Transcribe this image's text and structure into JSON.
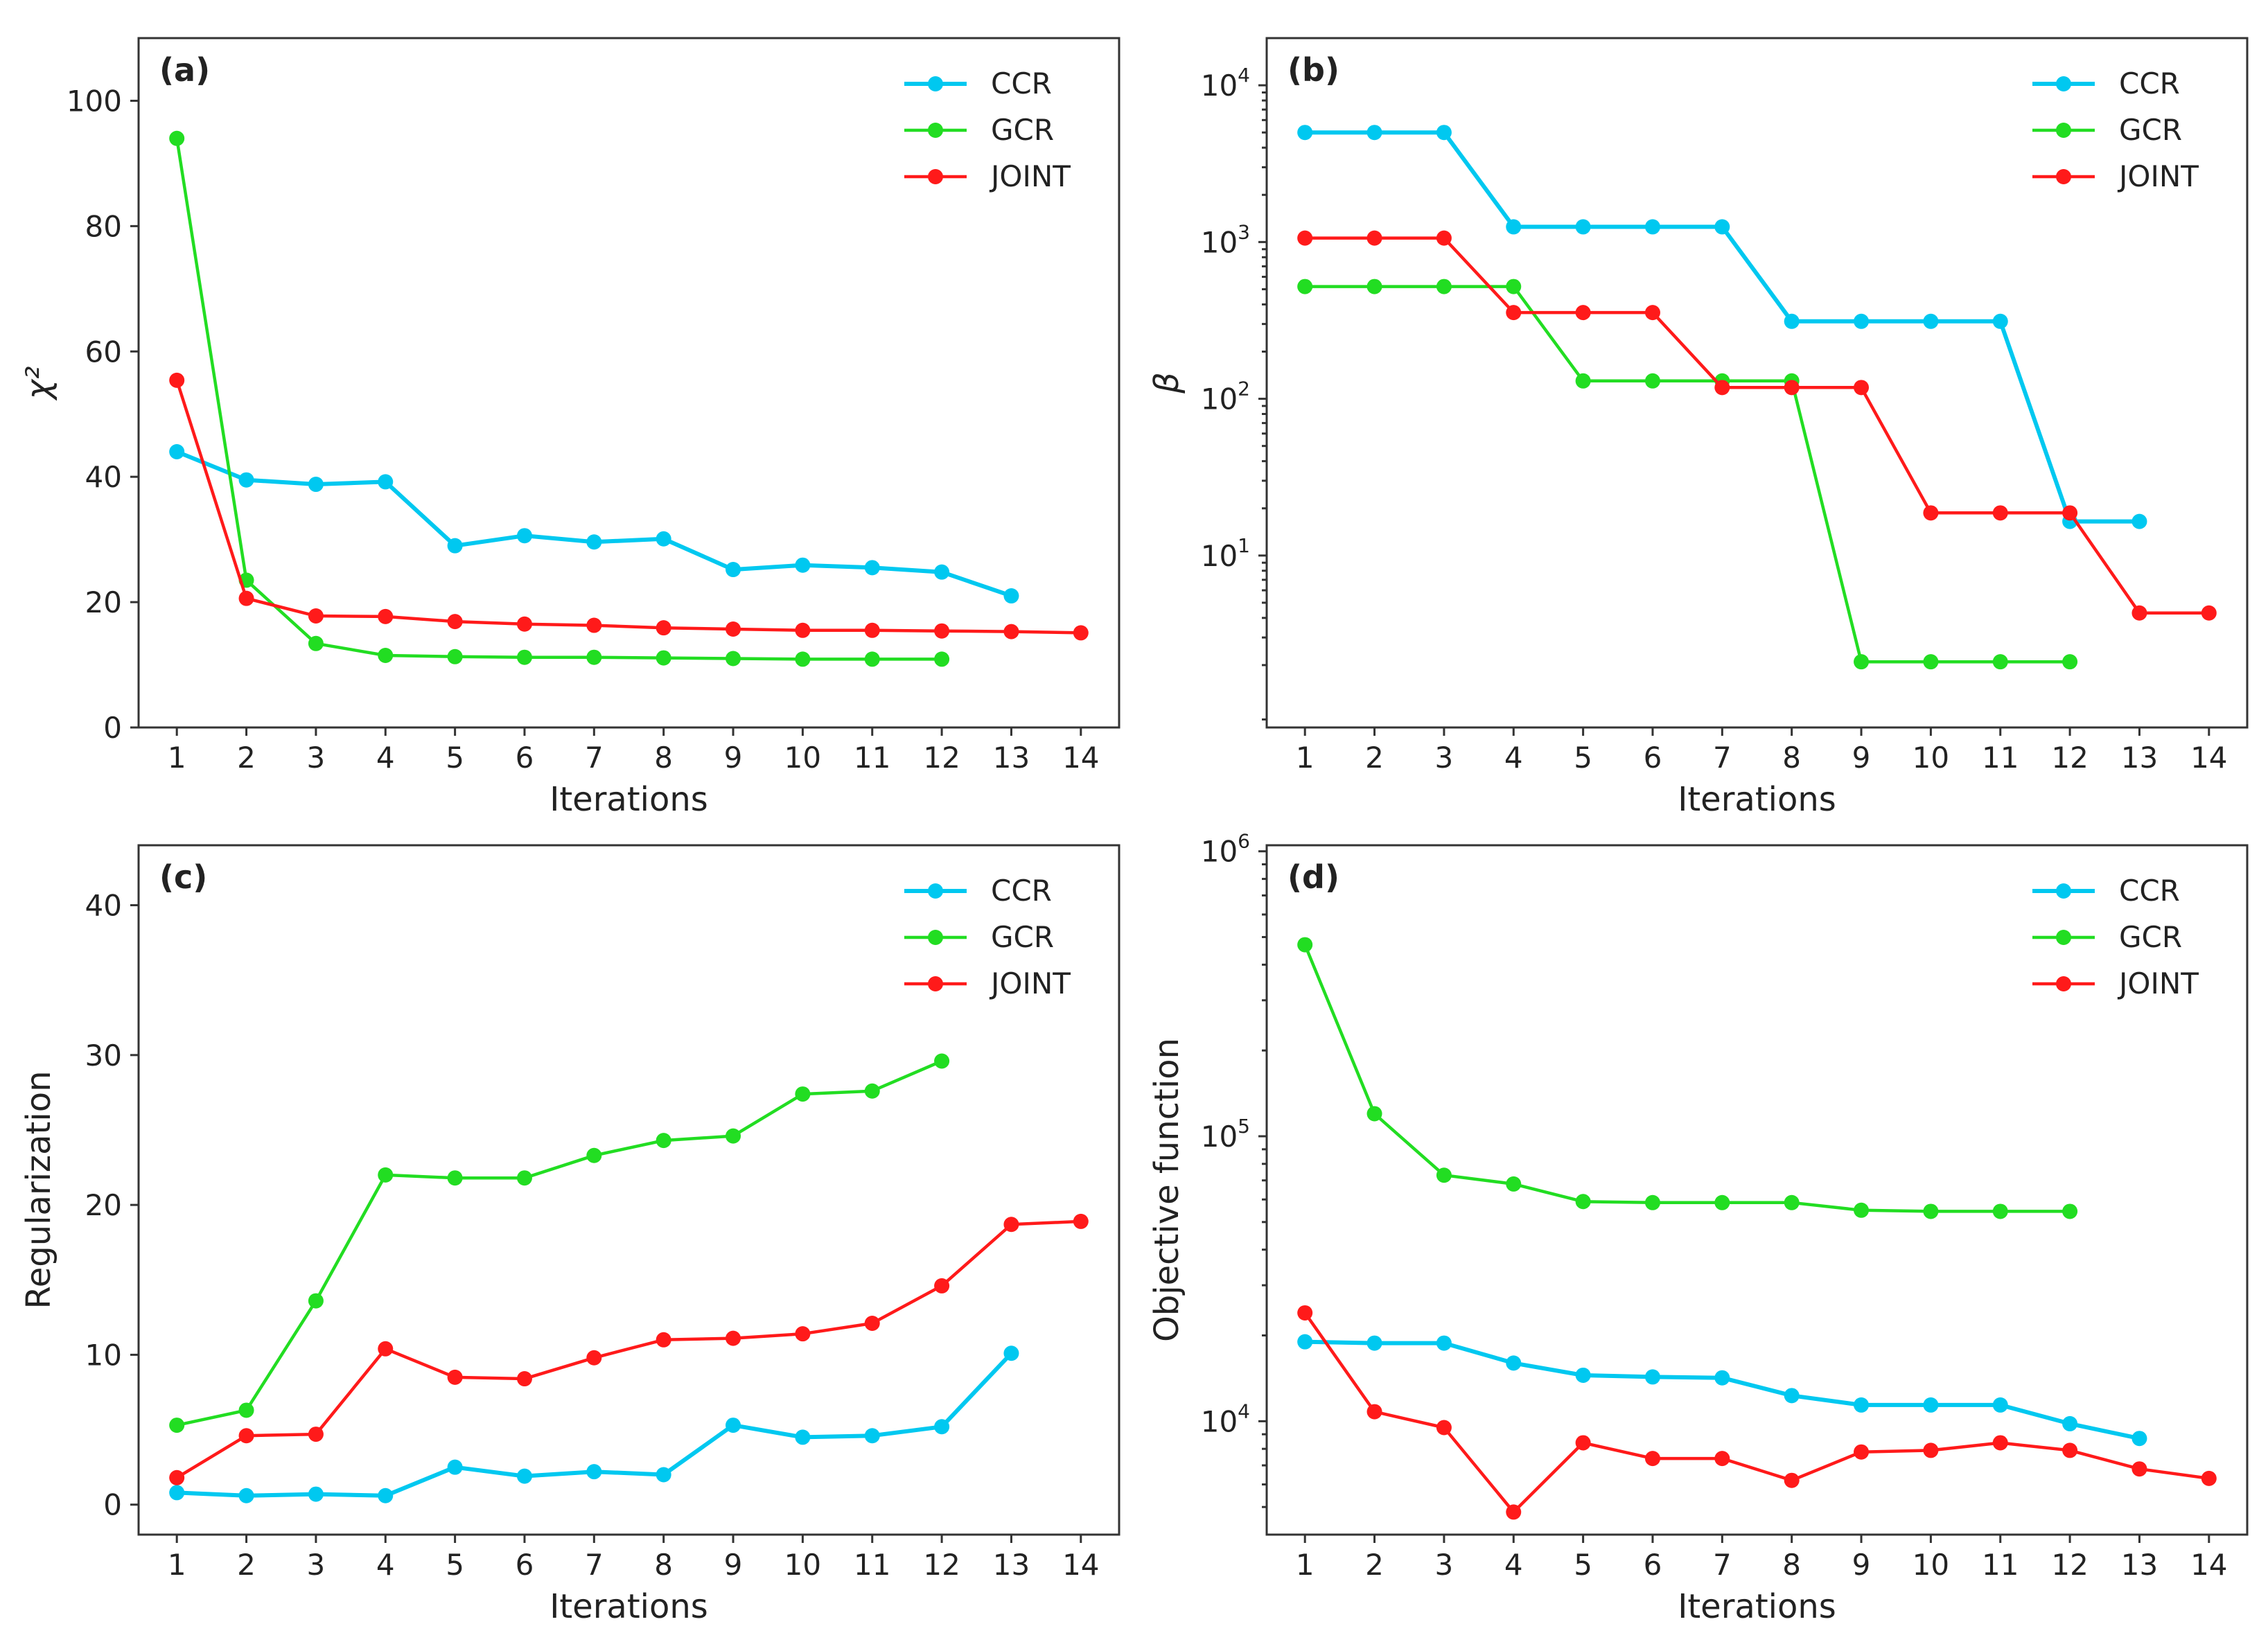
{
  "colors": {
    "CCR": "#00c8f0",
    "GCR": "#22dd22",
    "JOINT": "#ff1a1a"
  },
  "chart_data": [
    {
      "id": "a",
      "type": "line",
      "panel_label": "(a)",
      "xlabel": "Iterations",
      "ylabel": "χ²",
      "yscale": "linear",
      "ylim": [
        0,
        110
      ],
      "yticks": [
        0,
        20,
        40,
        60,
        80,
        100
      ],
      "ytick_labels": [
        "0",
        "20",
        "40",
        "60",
        "80",
        "100"
      ],
      "xlim": [
        0.45,
        14.55
      ],
      "xticks": [
        1,
        2,
        3,
        4,
        5,
        6,
        7,
        8,
        9,
        10,
        11,
        12,
        13,
        14
      ],
      "xtick_labels": [
        "1",
        "2",
        "3",
        "4",
        "5",
        "6",
        "7",
        "8",
        "9",
        "10",
        "11",
        "12",
        "13",
        "14"
      ],
      "legend_position": "top-right",
      "series": [
        {
          "name": "CCR",
          "x": [
            1,
            2,
            3,
            4,
            5,
            6,
            7,
            8,
            9,
            10,
            11,
            12,
            13
          ],
          "values": [
            44.0,
            39.5,
            38.8,
            39.2,
            29.0,
            30.6,
            29.6,
            30.1,
            25.2,
            25.9,
            25.5,
            24.8,
            21.0
          ]
        },
        {
          "name": "GCR",
          "x": [
            1,
            2,
            3,
            4,
            5,
            6,
            7,
            8,
            9,
            10,
            11,
            12
          ],
          "values": [
            94.0,
            23.5,
            13.4,
            11.5,
            11.3,
            11.2,
            11.2,
            11.1,
            11.0,
            10.9,
            10.9,
            10.9
          ]
        },
        {
          "name": "JOINT",
          "x": [
            1,
            2,
            3,
            4,
            5,
            6,
            7,
            8,
            9,
            10,
            11,
            12,
            13,
            14
          ],
          "values": [
            55.4,
            20.6,
            17.8,
            17.7,
            16.9,
            16.5,
            16.3,
            15.9,
            15.7,
            15.5,
            15.5,
            15.4,
            15.3,
            15.1
          ]
        }
      ]
    },
    {
      "id": "b",
      "type": "line",
      "panel_label": "(b)",
      "xlabel": "Iterations",
      "ylabel": "β",
      "yscale": "log",
      "ylim": [
        0.8,
        20000
      ],
      "yticks": [
        10,
        100,
        1000,
        10000
      ],
      "ytick_labels": [
        {
          "base": "10",
          "exp": "1"
        },
        {
          "base": "10",
          "exp": "2"
        },
        {
          "base": "10",
          "exp": "3"
        },
        {
          "base": "10",
          "exp": "4"
        }
      ],
      "xlim": [
        0.45,
        14.55
      ],
      "xticks": [
        1,
        2,
        3,
        4,
        5,
        6,
        7,
        8,
        9,
        10,
        11,
        12,
        13,
        14
      ],
      "xtick_labels": [
        "1",
        "2",
        "3",
        "4",
        "5",
        "6",
        "7",
        "8",
        "9",
        "10",
        "11",
        "12",
        "13",
        "14"
      ],
      "legend_position": "top-right",
      "series": [
        {
          "name": "CCR",
          "x": [
            1,
            2,
            3,
            4,
            5,
            6,
            7,
            8,
            9,
            10,
            11,
            12,
            13
          ],
          "values": [
            5000,
            5000,
            5000,
            1250,
            1250,
            1250,
            1250,
            312,
            312,
            312,
            312,
            16.5,
            16.5
          ]
        },
        {
          "name": "GCR",
          "x": [
            1,
            2,
            3,
            4,
            5,
            6,
            7,
            8,
            9,
            10,
            11,
            12
          ],
          "values": [
            520,
            520,
            520,
            520,
            130,
            130,
            130,
            130,
            2.1,
            2.1,
            2.1,
            2.1
          ]
        },
        {
          "name": "JOINT",
          "x": [
            1,
            2,
            3,
            4,
            5,
            6,
            7,
            8,
            9,
            10,
            11,
            12,
            13,
            14
          ],
          "values": [
            1060,
            1060,
            1060,
            355,
            355,
            355,
            118,
            118,
            118,
            18.7,
            18.7,
            18.7,
            4.3,
            4.3
          ]
        }
      ]
    },
    {
      "id": "c",
      "type": "line",
      "panel_label": "(c)",
      "xlabel": "Iterations",
      "ylabel": "Regularization",
      "yscale": "linear",
      "ylim": [
        -2,
        44
      ],
      "yticks": [
        0,
        10,
        20,
        30,
        40
      ],
      "ytick_labels": [
        "0",
        "10",
        "20",
        "30",
        "40"
      ],
      "xlim": [
        0.45,
        14.55
      ],
      "xticks": [
        1,
        2,
        3,
        4,
        5,
        6,
        7,
        8,
        9,
        10,
        11,
        12,
        13,
        14
      ],
      "xtick_labels": [
        "1",
        "2",
        "3",
        "4",
        "5",
        "6",
        "7",
        "8",
        "9",
        "10",
        "11",
        "12",
        "13",
        "14"
      ],
      "legend_position": "top-right",
      "series": [
        {
          "name": "CCR",
          "x": [
            1,
            2,
            3,
            4,
            5,
            6,
            7,
            8,
            9,
            10,
            11,
            12,
            13
          ],
          "values": [
            0.8,
            0.6,
            0.7,
            0.6,
            2.5,
            1.9,
            2.2,
            2.0,
            5.3,
            4.5,
            4.6,
            5.2,
            10.1
          ]
        },
        {
          "name": "GCR",
          "x": [
            1,
            2,
            3,
            4,
            5,
            6,
            7,
            8,
            9,
            10,
            11,
            12
          ],
          "values": [
            5.3,
            6.3,
            13.6,
            22.0,
            21.8,
            21.8,
            23.3,
            24.3,
            24.6,
            27.4,
            27.6,
            29.6
          ]
        },
        {
          "name": "JOINT",
          "x": [
            1,
            2,
            3,
            4,
            5,
            6,
            7,
            8,
            9,
            10,
            11,
            12,
            13,
            14
          ],
          "values": [
            1.8,
            4.6,
            4.7,
            10.4,
            8.5,
            8.4,
            9.8,
            11.0,
            11.1,
            11.4,
            12.1,
            14.6,
            18.7,
            18.9
          ]
        }
      ]
    },
    {
      "id": "d",
      "type": "line",
      "panel_label": "(d)",
      "xlabel": "Iterations",
      "ylabel": "Objective function",
      "yscale": "log",
      "ylim": [
        4000,
        1050000
      ],
      "yticks": [
        10000,
        100000,
        1000000
      ],
      "ytick_labels": [
        {
          "base": "10",
          "exp": "4"
        },
        {
          "base": "10",
          "exp": "5"
        },
        {
          "base": "10",
          "exp": "6"
        }
      ],
      "xlim": [
        0.45,
        14.55
      ],
      "xticks": [
        1,
        2,
        3,
        4,
        5,
        6,
        7,
        8,
        9,
        10,
        11,
        12,
        13,
        14
      ],
      "xtick_labels": [
        "1",
        "2",
        "3",
        "4",
        "5",
        "6",
        "7",
        "8",
        "9",
        "10",
        "11",
        "12",
        "13",
        "14"
      ],
      "legend_position": "top-right",
      "series": [
        {
          "name": "CCR",
          "x": [
            1,
            2,
            3,
            4,
            5,
            6,
            7,
            8,
            9,
            10,
            11,
            12,
            13
          ],
          "values": [
            19000,
            18800,
            18800,
            16000,
            14500,
            14300,
            14200,
            12300,
            11400,
            11400,
            11400,
            9800,
            8700
          ]
        },
        {
          "name": "GCR",
          "x": [
            1,
            2,
            3,
            4,
            5,
            6,
            7,
            8,
            9,
            10,
            11,
            12
          ],
          "values": [
            470000,
            120000,
            73000,
            68000,
            59000,
            58500,
            58500,
            58500,
            55000,
            54500,
            54500,
            54500
          ]
        },
        {
          "name": "JOINT",
          "x": [
            1,
            2,
            3,
            4,
            5,
            6,
            7,
            8,
            9,
            10,
            11,
            12,
            13,
            14
          ],
          "values": [
            24000,
            10800,
            9500,
            4800,
            8400,
            7400,
            7400,
            6200,
            7800,
            7900,
            8400,
            7900,
            6800,
            6300
          ]
        }
      ]
    }
  ]
}
